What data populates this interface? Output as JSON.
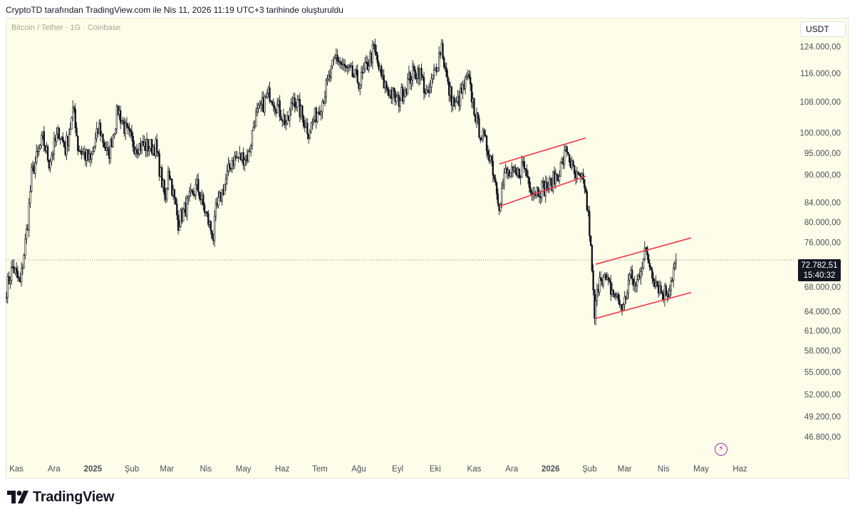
{
  "caption": "CryptoTD tarafından TradingView.com ile Nis 11, 2026 11:19 UTC+3 tarihinde oluşturuldu",
  "symbol": "Bitcoin / Tether · 1G · Coinbase",
  "currency": "USDT",
  "brand": "TradingView",
  "last_price": {
    "value": "72.782,51",
    "countdown": "15:40:32"
  },
  "colors": {
    "background": "#fefde9",
    "candles": "#131722",
    "channel": "#f23645",
    "accent": "#9c27b0"
  },
  "icons": {
    "bolt": "lightning-icon",
    "logo": "tradingview-logo-icon"
  },
  "chart_data": {
    "type": "candlestick",
    "scale": "log",
    "ylim": [
      44000,
      133000
    ],
    "y_ticks": [
      {
        "value": 124000,
        "label": "124.000,00"
      },
      {
        "value": 116000,
        "label": "116.000,00"
      },
      {
        "value": 108000,
        "label": "108.000,00"
      },
      {
        "value": 100000,
        "label": "100.000,00"
      },
      {
        "value": 95000,
        "label": "95.000,00"
      },
      {
        "value": 90000,
        "label": "90.000,00"
      },
      {
        "value": 84000,
        "label": "84.000,00"
      },
      {
        "value": 80000,
        "label": "80.000,00"
      },
      {
        "value": 76000,
        "label": "76.000,00"
      },
      {
        "value": 68000,
        "label": "68.000,00"
      },
      {
        "value": 64000,
        "label": "64.000,00"
      },
      {
        "value": 61000,
        "label": "61.000,00"
      },
      {
        "value": 58000,
        "label": "58.000,00"
      },
      {
        "value": 55000,
        "label": "55.000,00"
      },
      {
        "value": 52000,
        "label": "52.000,00"
      },
      {
        "value": 49200,
        "label": "49.200,00"
      },
      {
        "value": 46800,
        "label": "46.800,00"
      }
    ],
    "x_range": [
      "2024-10-24",
      "2026-07-15"
    ],
    "x_ticks": [
      {
        "date": "2024-11-01",
        "label": "Kas"
      },
      {
        "date": "2024-12-01",
        "label": "Ara"
      },
      {
        "date": "2025-01-01",
        "label": "2025"
      },
      {
        "date": "2025-02-01",
        "label": "Şub"
      },
      {
        "date": "2025-03-01",
        "label": "Mar"
      },
      {
        "date": "2025-04-01",
        "label": "Nis"
      },
      {
        "date": "2025-05-01",
        "label": "May"
      },
      {
        "date": "2025-06-01",
        "label": "Haz"
      },
      {
        "date": "2025-07-01",
        "label": "Tem"
      },
      {
        "date": "2025-08-01",
        "label": "Ağu"
      },
      {
        "date": "2025-09-01",
        "label": "Eyl"
      },
      {
        "date": "2025-10-01",
        "label": "Eki"
      },
      {
        "date": "2025-11-01",
        "label": "Kas"
      },
      {
        "date": "2025-12-01",
        "label": "Ara"
      },
      {
        "date": "2026-01-01",
        "label": "2026"
      },
      {
        "date": "2026-02-01",
        "label": "Şub"
      },
      {
        "date": "2026-03-01",
        "label": "Mar"
      },
      {
        "date": "2026-04-01",
        "label": "Nis"
      },
      {
        "date": "2026-05-01",
        "label": "May"
      },
      {
        "date": "2026-06-01",
        "label": "Haz"
      }
    ],
    "bold_x_ticks": [
      "2025",
      "2026"
    ],
    "price_path": [
      {
        "date": "2024-10-24",
        "price": 67800
      },
      {
        "date": "2024-10-29",
        "price": 71500
      },
      {
        "date": "2024-11-04",
        "price": 68500
      },
      {
        "date": "2024-11-10",
        "price": 80000
      },
      {
        "date": "2024-11-13",
        "price": 90000
      },
      {
        "date": "2024-11-22",
        "price": 98500
      },
      {
        "date": "2024-11-27",
        "price": 93000
      },
      {
        "date": "2024-12-05",
        "price": 100500
      },
      {
        "date": "2024-12-10",
        "price": 96000
      },
      {
        "date": "2024-12-17",
        "price": 106000
      },
      {
        "date": "2024-12-20",
        "price": 96500
      },
      {
        "date": "2024-12-30",
        "price": 93000
      },
      {
        "date": "2025-01-06",
        "price": 101500
      },
      {
        "date": "2025-01-13",
        "price": 94000
      },
      {
        "date": "2025-01-21",
        "price": 106000
      },
      {
        "date": "2025-01-27",
        "price": 100500
      },
      {
        "date": "2025-02-03",
        "price": 97000
      },
      {
        "date": "2025-02-20",
        "price": 96500
      },
      {
        "date": "2025-02-28",
        "price": 84000
      },
      {
        "date": "2025-03-02",
        "price": 92000
      },
      {
        "date": "2025-03-10",
        "price": 80000
      },
      {
        "date": "2025-03-25",
        "price": 87500
      },
      {
        "date": "2025-04-07",
        "price": 77000
      },
      {
        "date": "2025-04-09",
        "price": 82000
      },
      {
        "date": "2025-04-22",
        "price": 93500
      },
      {
        "date": "2025-05-05",
        "price": 94500
      },
      {
        "date": "2025-05-10",
        "price": 103500
      },
      {
        "date": "2025-05-22",
        "price": 110500
      },
      {
        "date": "2025-06-05",
        "price": 102000
      },
      {
        "date": "2025-06-10",
        "price": 109500
      },
      {
        "date": "2025-06-22",
        "price": 100500
      },
      {
        "date": "2025-07-03",
        "price": 108500
      },
      {
        "date": "2025-07-14",
        "price": 121000
      },
      {
        "date": "2025-07-20",
        "price": 117500
      },
      {
        "date": "2025-08-02",
        "price": 113500
      },
      {
        "date": "2025-08-13",
        "price": 123000
      },
      {
        "date": "2025-08-20",
        "price": 113500
      },
      {
        "date": "2025-09-01",
        "price": 108000
      },
      {
        "date": "2025-09-12",
        "price": 115500
      },
      {
        "date": "2025-09-18",
        "price": 117000
      },
      {
        "date": "2025-09-25",
        "price": 109000
      },
      {
        "date": "2025-10-06",
        "price": 124500
      },
      {
        "date": "2025-10-11",
        "price": 112000
      },
      {
        "date": "2025-10-17",
        "price": 106500
      },
      {
        "date": "2025-10-27",
        "price": 114500
      },
      {
        "date": "2025-11-04",
        "price": 101500
      },
      {
        "date": "2025-11-14",
        "price": 94500
      },
      {
        "date": "2025-11-21",
        "price": 84000
      },
      {
        "date": "2025-11-26",
        "price": 90500
      },
      {
        "date": "2025-12-05",
        "price": 89500
      },
      {
        "date": "2025-12-10",
        "price": 92500
      },
      {
        "date": "2025-12-18",
        "price": 86500
      },
      {
        "date": "2025-12-31",
        "price": 87500
      },
      {
        "date": "2026-01-08",
        "price": 91000
      },
      {
        "date": "2026-01-14",
        "price": 96000
      },
      {
        "date": "2026-01-20",
        "price": 89500
      },
      {
        "date": "2026-01-28",
        "price": 88000
      },
      {
        "date": "2026-02-01",
        "price": 78500
      },
      {
        "date": "2026-02-05",
        "price": 63000
      },
      {
        "date": "2026-02-09",
        "price": 70500
      },
      {
        "date": "2026-02-20",
        "price": 67000
      },
      {
        "date": "2026-02-28",
        "price": 64500
      },
      {
        "date": "2026-03-05",
        "price": 70000
      },
      {
        "date": "2026-03-10",
        "price": 68000
      },
      {
        "date": "2026-03-17",
        "price": 74500
      },
      {
        "date": "2026-03-25",
        "price": 69500
      },
      {
        "date": "2026-03-31",
        "price": 67000
      },
      {
        "date": "2026-04-05",
        "price": 67500
      },
      {
        "date": "2026-04-11",
        "price": 72782.51
      }
    ],
    "channels": [
      {
        "start": {
          "date": "2025-11-21",
          "price": 92500
        },
        "end": {
          "date": "2026-01-29",
          "price": 98700
        }
      },
      {
        "start": {
          "date": "2025-11-21",
          "price": 83200
        },
        "end": {
          "date": "2026-01-29",
          "price": 89700
        }
      },
      {
        "start": {
          "date": "2026-02-06",
          "price": 72000
        },
        "end": {
          "date": "2026-04-23",
          "price": 76900
        }
      },
      {
        "start": {
          "date": "2026-02-06",
          "price": 62900
        },
        "end": {
          "date": "2026-04-23",
          "price": 67100
        }
      }
    ],
    "current_price": 72782.51
  }
}
